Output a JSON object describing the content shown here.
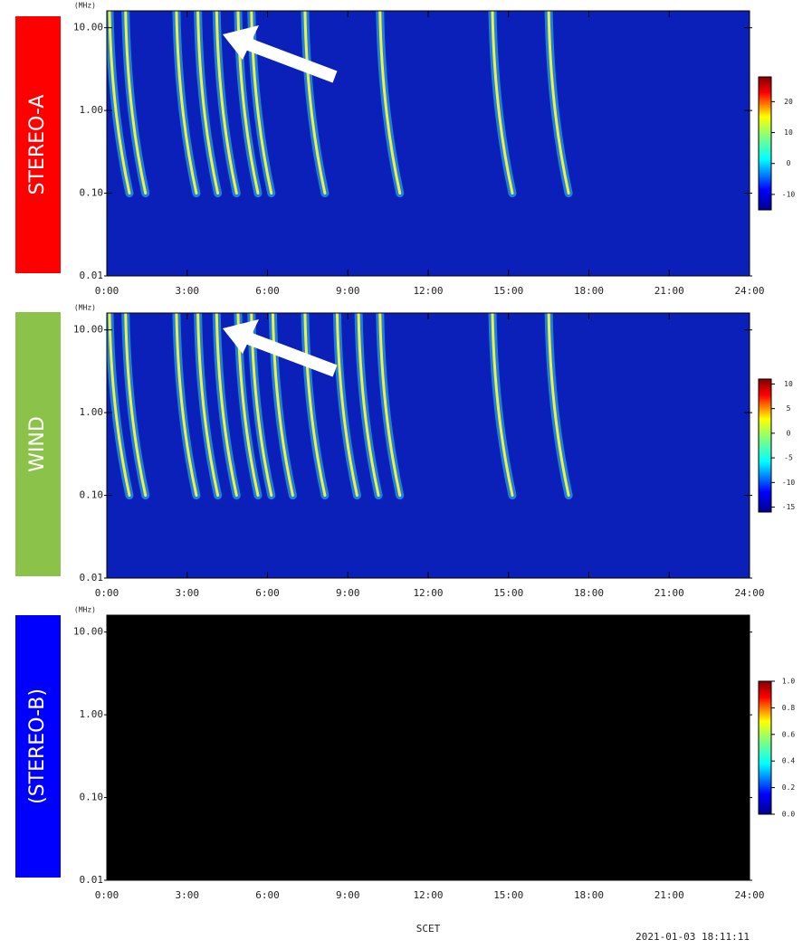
{
  "chart_data": [
    {
      "type": "spectrogram",
      "label": "STEREO-A",
      "label_color": "#ff0000",
      "background": "#0b20b8",
      "y_unit": "(MHz)",
      "log_y": true,
      "xlim": [
        0,
        24
      ],
      "ylim": [
        0.01,
        16
      ],
      "xticks": [
        {
          "value": 0,
          "label": "0:00"
        },
        {
          "value": 3,
          "label": "3:00"
        },
        {
          "value": 6,
          "label": "6:00"
        },
        {
          "value": 9,
          "label": "9:00"
        },
        {
          "value": 12,
          "label": "12:00"
        },
        {
          "value": 15,
          "label": "15:00"
        },
        {
          "value": 18,
          "label": "18:00"
        },
        {
          "value": 21,
          "label": "21:00"
        },
        {
          "value": 24,
          "label": "24:00"
        }
      ],
      "yticks": [
        {
          "value": 10,
          "label": "10.00"
        },
        {
          "value": 1,
          "label": "1.00"
        },
        {
          "value": 0.1,
          "label": "0.10"
        },
        {
          "value": 0.01,
          "label": "0.01"
        }
      ],
      "colorbar": {
        "lim": [
          -15,
          28
        ],
        "ticks": [
          20,
          10,
          0,
          -10
        ]
      },
      "bursts": [
        0.1,
        0.7,
        2.6,
        3.4,
        4.1,
        4.9,
        5.4,
        7.4,
        10.2,
        14.4,
        16.5
      ]
    },
    {
      "type": "spectrogram",
      "label": "WIND",
      "label_color": "#8bc34a",
      "background": "#0b20b8",
      "y_unit": "(MHz)",
      "log_y": true,
      "xlim": [
        0,
        24
      ],
      "ylim": [
        0.01,
        16
      ],
      "xticks": [
        {
          "value": 0,
          "label": "0:00"
        },
        {
          "value": 3,
          "label": "3:00"
        },
        {
          "value": 6,
          "label": "6:00"
        },
        {
          "value": 9,
          "label": "9:00"
        },
        {
          "value": 12,
          "label": "12:00"
        },
        {
          "value": 15,
          "label": "15:00"
        },
        {
          "value": 18,
          "label": "18:00"
        },
        {
          "value": 21,
          "label": "21:00"
        },
        {
          "value": 24,
          "label": "24:00"
        }
      ],
      "yticks": [
        {
          "value": 10,
          "label": "10.00"
        },
        {
          "value": 1,
          "label": "1.00"
        },
        {
          "value": 0.1,
          "label": "0.10"
        },
        {
          "value": 0.01,
          "label": "0.01"
        }
      ],
      "colorbar": {
        "lim": [
          -16,
          11
        ],
        "ticks": [
          10,
          5,
          0,
          -5,
          -10,
          -15
        ]
      },
      "bursts": [
        0.1,
        0.7,
        2.6,
        3.4,
        4.1,
        4.9,
        5.4,
        6.2,
        7.4,
        8.6,
        9.4,
        10.2,
        14.4,
        16.5
      ]
    },
    {
      "type": "spectrogram",
      "label": "(STEREO-B)",
      "label_color": "#0000ff",
      "background": "#000000",
      "y_unit": "(MHz)",
      "log_y": true,
      "xlim": [
        0,
        24
      ],
      "ylim": [
        0.01,
        16
      ],
      "xticks": [
        {
          "value": 0,
          "label": "0:00"
        },
        {
          "value": 3,
          "label": "3:00"
        },
        {
          "value": 6,
          "label": "6:00"
        },
        {
          "value": 9,
          "label": "9:00"
        },
        {
          "value": 12,
          "label": "12:00"
        },
        {
          "value": 15,
          "label": "15:00"
        },
        {
          "value": 18,
          "label": "18:00"
        },
        {
          "value": 21,
          "label": "21:00"
        },
        {
          "value": 24,
          "label": "24:00"
        }
      ],
      "yticks": [
        {
          "value": 10,
          "label": "10.00"
        },
        {
          "value": 1,
          "label": "1.00"
        },
        {
          "value": 0.1,
          "label": "0.10"
        },
        {
          "value": 0.01,
          "label": "0.01"
        }
      ],
      "colorbar": {
        "lim": [
          0,
          1
        ],
        "ticks": [
          {
            "value": 1,
            "label": "1.0"
          },
          {
            "value": 0.8,
            "label": "0.8"
          },
          {
            "value": 0.6,
            "label": "0.6"
          },
          {
            "value": 0.4,
            "label": "0.4"
          },
          {
            "value": 0.2,
            "label": "0.2"
          },
          {
            "value": 0,
            "label": "0.0"
          }
        ]
      },
      "bursts": []
    }
  ],
  "footer": {
    "x_label": "SCET",
    "timestamp": "2021-01-03 18:11:11"
  }
}
